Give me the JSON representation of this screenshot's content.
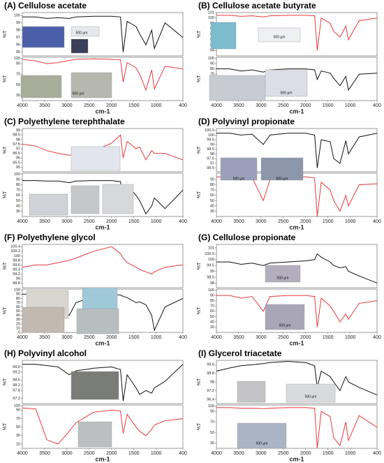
{
  "chart_data": [
    {
      "type": "line",
      "title": "(A) Cellulose acetate",
      "xlabel": "cm-1",
      "x": [
        4000,
        3700,
        3450,
        3200,
        2950,
        2800,
        2400,
        2000,
        1800,
        1740,
        1650,
        1450,
        1370,
        1230,
        1100,
        1040,
        800,
        400
      ],
      "xlim": [
        4000,
        400
      ],
      "xticks": [
        4000,
        3500,
        3000,
        2500,
        2000,
        1500,
        1000,
        400
      ],
      "annotations": [
        "500 µm",
        "500 µm"
      ],
      "panels": [
        {
          "ylabel": "%T",
          "ylim": [
            94.5,
            100.4
          ],
          "yticks": [
            95,
            96,
            97,
            98,
            99,
            100
          ],
          "series": [
            {
              "color": "#111111",
              "values": [
                99.8,
                99.8,
                99.6,
                99.7,
                99.6,
                99.8,
                99.9,
                99.9,
                99.8,
                95,
                99.2,
                98.5,
                97.5,
                96,
                98,
                95.5,
                99,
                97
              ]
            }
          ]
        },
        {
          "ylabel": "%T",
          "ylim": [
            20,
            102
          ],
          "yticks": [
            30,
            50,
            70,
            90,
            100
          ],
          "series": [
            {
              "color": "#e8393b",
              "values": [
                98,
                95,
                90,
                92,
                96,
                98,
                99,
                98,
                97,
                55,
                92,
                82,
                70,
                40,
                78,
                42,
                85,
                80
              ]
            }
          ]
        }
      ]
    },
    {
      "type": "line",
      "title": "(B) Cellulose acetate butyrate",
      "xlabel": "cm-1",
      "x": [
        4000,
        3700,
        3450,
        3200,
        2950,
        2800,
        2400,
        2000,
        1800,
        1740,
        1650,
        1450,
        1370,
        1230,
        1100,
        1040,
        800,
        400
      ],
      "xlim": [
        4000,
        400
      ],
      "xticks": [
        4000,
        3500,
        3000,
        2500,
        2000,
        1500,
        1000,
        400
      ],
      "annotations": [
        "500 µm",
        "500 µm"
      ],
      "panels": [
        {
          "ylabel": "%T",
          "ylim": [
            93,
            101
          ],
          "yticks": [
            94,
            95,
            96,
            97,
            98,
            99,
            100,
            101
          ],
          "series": [
            {
              "color": "#e8393b",
              "values": [
                100.5,
                100.5,
                100.3,
                100.4,
                100.2,
                100.4,
                100.5,
                100.5,
                100.4,
                94,
                100,
                99,
                97.5,
                96.5,
                98.5,
                96,
                99.5,
                100
              ]
            }
          ]
        },
        {
          "ylabel": "%T",
          "ylim": [
            20,
            102
          ],
          "yticks": [
            30,
            40,
            50,
            60,
            70,
            80,
            90,
            100
          ],
          "series": [
            {
              "color": "#111111",
              "values": [
                80,
                80,
                76,
                78,
                74,
                78,
                80,
                80,
                78,
                60,
                76,
                72,
                62,
                48,
                66,
                40,
                70,
                72
              ]
            }
          ]
        }
      ]
    },
    {
      "type": "line",
      "title": "(C) Polyethylene terephthalate",
      "xlabel": "cm-1",
      "x": [
        4000,
        3700,
        3450,
        3200,
        2950,
        2800,
        2400,
        2000,
        1800,
        1740,
        1650,
        1450,
        1370,
        1230,
        1100,
        1040,
        800,
        400
      ],
      "xlim": [
        4000,
        400
      ],
      "xticks": [
        4000,
        3500,
        3000,
        2500,
        2000,
        1500,
        1000,
        400
      ],
      "annotations": [],
      "panels": [
        {
          "ylabel": "%T",
          "ylim": [
            94.5,
            99.2
          ],
          "yticks": [
            95,
            95.5,
            96,
            96.5,
            97,
            97.5,
            98,
            98.5,
            99
          ],
          "series": [
            {
              "color": "#e8393b",
              "values": [
                97.5,
                97.3,
                96.8,
                96.5,
                96.3,
                96.4,
                96.8,
                97.6,
                98.5,
                96,
                97.8,
                97,
                97.2,
                95.8,
                96.8,
                96.5,
                96.5,
                95.8
              ]
            }
          ]
        },
        {
          "ylabel": "%T",
          "ylim": [
            20,
            102
          ],
          "yticks": [
            30,
            40,
            50,
            60,
            70,
            80,
            90,
            100
          ],
          "series": [
            {
              "color": "#111111",
              "values": [
                88,
                88,
                87,
                87,
                84,
                87,
                88,
                88,
                86,
                30,
                80,
                60,
                50,
                25,
                40,
                55,
                35,
                70
              ]
            }
          ]
        }
      ]
    },
    {
      "type": "line",
      "title": "(D) Polyvinyl propionate",
      "xlabel": "cm-1",
      "x": [
        4000,
        3700,
        3450,
        3200,
        2950,
        2800,
        2400,
        2000,
        1800,
        1740,
        1650,
        1450,
        1370,
        1230,
        1100,
        1040,
        800,
        400
      ],
      "xlim": [
        4000,
        400
      ],
      "xticks": [
        4000,
        3500,
        3000,
        2500,
        2000,
        1500,
        1000,
        400
      ],
      "annotations": [
        "500 µm",
        "500 µm"
      ],
      "panels": [
        {
          "ylabel": "%T",
          "ylim": [
            96.1,
            100.7
          ],
          "yticks": [
            96.5,
            97,
            97.5,
            98,
            98.5,
            99,
            99.5,
            100,
            100.5
          ],
          "series": [
            {
              "color": "#111111",
              "values": [
                100.2,
                100.2,
                100,
                100.1,
                99,
                100,
                100.2,
                100.2,
                100,
                96.5,
                99.5,
                99.3,
                97.5,
                97,
                99.4,
                98,
                99.8,
                100.2
              ]
            }
          ]
        },
        {
          "ylabel": "%T",
          "ylim": [
            20,
            102
          ],
          "yticks": [
            30,
            40,
            50,
            60,
            70,
            80,
            90
          ],
          "series": [
            {
              "color": "#e8393b",
              "values": [
                95,
                95,
                93,
                94,
                50,
                90,
                95,
                95,
                93,
                20,
                85,
                70,
                50,
                30,
                60,
                40,
                80,
                82
              ]
            }
          ]
        }
      ]
    },
    {
      "type": "line",
      "title": "(F) Polyethylene glycol",
      "xlabel": "cm-1",
      "x": [
        4000,
        3700,
        3450,
        3200,
        2950,
        2800,
        2400,
        2000,
        1800,
        1740,
        1650,
        1450,
        1370,
        1230,
        1100,
        1040,
        800,
        400
      ],
      "xlim": [
        4000,
        400
      ],
      "xticks": [
        4000,
        3500,
        3000,
        2500,
        2000,
        1500,
        1000,
        400
      ],
      "annotations": [],
      "panels": [
        {
          "ylabel": "%T",
          "ylim": [
            98.6,
            100.5
          ],
          "yticks": [
            98.8,
            99,
            99.2,
            99.4,
            99.6,
            99.8,
            100,
            100.2,
            100.4
          ],
          "series": [
            {
              "color": "#e8393b",
              "values": [
                99.5,
                99.6,
                99.6,
                99.7,
                99.8,
                99.9,
                100.2,
                100.4,
                100.1,
                99.9,
                99.7,
                99.5,
                99.4,
                99.3,
                99.2,
                99.3,
                99.5,
                99.6
              ]
            }
          ]
        },
        {
          "ylabel": "%T",
          "ylim": [
            0,
            102
          ],
          "yticks": [
            0,
            10,
            20,
            30,
            40,
            50,
            60,
            70,
            80,
            90,
            100
          ],
          "series": [
            {
              "color": "#111111",
              "values": [
                90,
                90,
                65,
                60,
                40,
                70,
                85,
                90,
                88,
                85,
                82,
                70,
                72,
                65,
                40,
                5,
                60,
                80
              ]
            }
          ]
        }
      ]
    },
    {
      "type": "line",
      "title": "(G) Cellulose propionate",
      "xlabel": "cm-1",
      "x": [
        4000,
        3700,
        3450,
        3200,
        2950,
        2800,
        2400,
        2000,
        1800,
        1740,
        1650,
        1450,
        1370,
        1230,
        1100,
        1040,
        800,
        400
      ],
      "xlim": [
        4000,
        400
      ],
      "xticks": [
        4000,
        3500,
        3000,
        2500,
        2000,
        1500,
        1000,
        400
      ],
      "annotations": [
        "500 µm",
        "500 µm"
      ],
      "panels": [
        {
          "ylabel": "%T",
          "ylim": [
            97.6,
            101.3
          ],
          "yticks": [
            98,
            98.5,
            99,
            99.5,
            100,
            100.5,
            101
          ],
          "series": [
            {
              "color": "#111111",
              "values": [
                99.8,
                99.8,
                99.6,
                99.7,
                99.5,
                99.7,
                99.8,
                99.9,
                100,
                100.5,
                100.2,
                99.8,
                99.5,
                99.3,
                99.4,
                99,
                98.6,
                98
              ]
            }
          ]
        },
        {
          "ylabel": "%T",
          "ylim": [
            20,
            102
          ],
          "yticks": [
            30,
            40,
            50,
            60,
            70,
            80,
            90,
            100
          ],
          "series": [
            {
              "color": "#e8393b",
              "values": [
                90,
                90,
                85,
                88,
                60,
                88,
                90,
                90,
                88,
                30,
                85,
                70,
                60,
                40,
                55,
                45,
                75,
                80
              ]
            }
          ]
        }
      ]
    },
    {
      "type": "line",
      "title": "(H) Polyvinyl alcohol",
      "xlabel": "cm-1",
      "x": [
        4000,
        3700,
        3450,
        3200,
        2950,
        2800,
        2400,
        2000,
        1800,
        1740,
        1650,
        1450,
        1370,
        1230,
        1100,
        1040,
        800,
        400
      ],
      "xlim": [
        4000,
        400
      ],
      "xticks": [
        4000,
        3500,
        3000,
        2500,
        2000,
        1500,
        1000,
        400
      ],
      "annotations": [],
      "panels": [
        {
          "ylabel": "%T",
          "ylim": [
            96.8,
            100.1
          ],
          "yticks": [
            97.2,
            97.8,
            98.2,
            98.6,
            99.2,
            99.6
          ],
          "series": [
            {
              "color": "#111111",
              "values": [
                99.8,
                99.8,
                99.7,
                99.6,
                99,
                99.3,
                99.5,
                99.6,
                99.4,
                97,
                99,
                98,
                97.5,
                97.8,
                97.6,
                98,
                98.5,
                99.8
              ]
            }
          ]
        },
        {
          "ylabel": "%T",
          "ylim": [
            0,
            102
          ],
          "yticks": [
            10,
            30,
            50,
            70,
            90,
            100
          ],
          "series": [
            {
              "color": "#e8393b",
              "values": [
                95,
                93,
                20,
                10,
                40,
                60,
                85,
                90,
                88,
                35,
                80,
                50,
                40,
                30,
                45,
                55,
                65,
                70
              ]
            }
          ]
        }
      ]
    },
    {
      "type": "line",
      "title": "(I) Glycerol triacetate",
      "xlabel": "cm-1",
      "x": [
        4000,
        3700,
        3450,
        3200,
        2950,
        2800,
        2400,
        2000,
        1800,
        1740,
        1650,
        1450,
        1370,
        1230,
        1100,
        1040,
        800,
        400
      ],
      "xlim": [
        4000,
        400
      ],
      "xticks": [
        4000,
        3500,
        3000,
        2500,
        2000,
        1500,
        1000,
        400
      ],
      "annotations": [
        "500 µm",
        "500 µm"
      ],
      "panels": [
        {
          "ylabel": "%T",
          "ylim": [
            96,
            100
          ],
          "yticks": [
            96.4,
            97.2,
            98,
            98.8,
            99.6
          ],
          "series": [
            {
              "color": "#111111",
              "values": [
                99,
                99.3,
                99.5,
                99.6,
                99.7,
                99.8,
                99.9,
                99.8,
                99.5,
                97.5,
                99,
                98.5,
                98,
                97.2,
                98.5,
                98,
                97.5,
                96.8
              ]
            }
          ]
        },
        {
          "ylabel": "%T",
          "ylim": [
            20,
            102
          ],
          "yticks": [
            30,
            50,
            70,
            90,
            100
          ],
          "series": [
            {
              "color": "#e8393b",
              "values": [
                97,
                97,
                96,
                96,
                95,
                96,
                97,
                97,
                96,
                20,
                90,
                80,
                40,
                25,
                70,
                35,
                82,
                60
              ]
            }
          ]
        }
      ]
    }
  ]
}
